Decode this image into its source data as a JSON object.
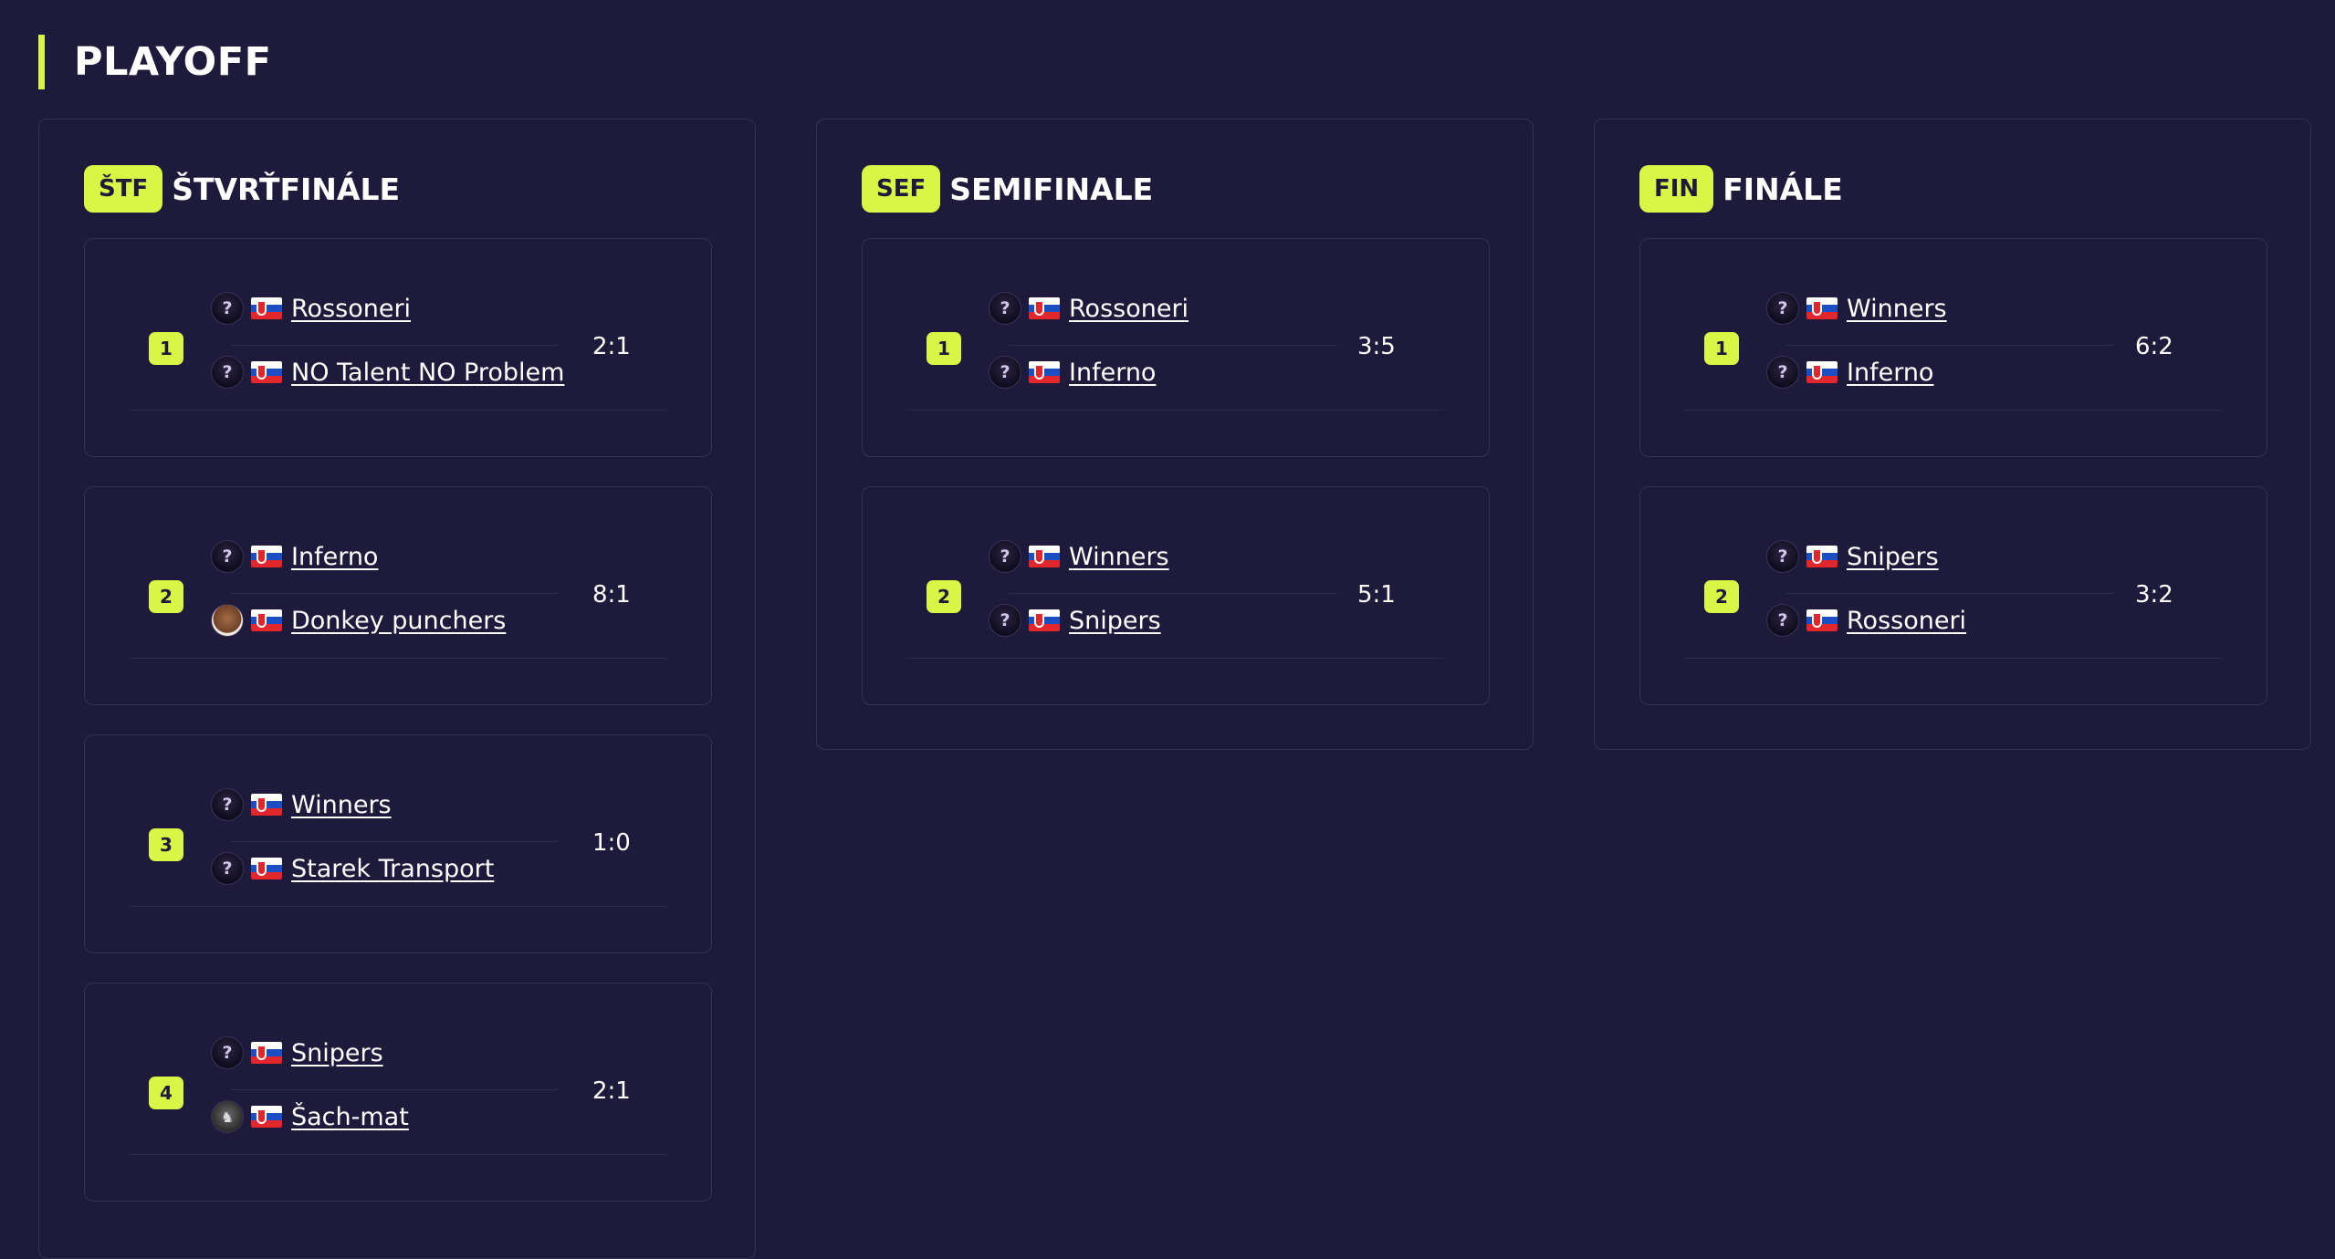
{
  "page": {
    "title": "PLAYOFF",
    "accent_color": "#d9f545",
    "background_color": "#1e1a3b"
  },
  "rounds": [
    {
      "badge": "ŠTF",
      "title": "ŠTVRŤFINÁLE",
      "matches": [
        {
          "number": "1",
          "score": "2:1",
          "team1": {
            "name": "Rossoneri",
            "avatar": "question-avatar",
            "flag": "slovakia-flag"
          },
          "team2": {
            "name": "NO Talent NO Problem",
            "avatar": "question-avatar",
            "flag": "slovakia-flag"
          }
        },
        {
          "number": "2",
          "score": "8:1",
          "team1": {
            "name": "Inferno",
            "avatar": "question-avatar",
            "flag": "slovakia-flag"
          },
          "team2": {
            "name": "Donkey punchers",
            "avatar": "team-photo-avatar",
            "flag": "slovakia-flag"
          }
        },
        {
          "number": "3",
          "score": "1:0",
          "team1": {
            "name": "Winners",
            "avatar": "question-avatar",
            "flag": "slovakia-flag"
          },
          "team2": {
            "name": "Starek Transport",
            "avatar": "question-avatar",
            "flag": "slovakia-flag"
          }
        },
        {
          "number": "4",
          "score": "2:1",
          "team1": {
            "name": "Snipers",
            "avatar": "question-avatar",
            "flag": "slovakia-flag"
          },
          "team2": {
            "name": "Šach-mat",
            "avatar": "knight-avatar",
            "flag": "slovakia-flag"
          }
        }
      ]
    },
    {
      "badge": "SEF",
      "title": "SEMIFINALE",
      "matches": [
        {
          "number": "1",
          "score": "3:5",
          "team1": {
            "name": "Rossoneri",
            "avatar": "question-avatar",
            "flag": "slovakia-flag"
          },
          "team2": {
            "name": "Inferno",
            "avatar": "question-avatar",
            "flag": "slovakia-flag"
          }
        },
        {
          "number": "2",
          "score": "5:1",
          "team1": {
            "name": "Winners",
            "avatar": "question-avatar",
            "flag": "slovakia-flag"
          },
          "team2": {
            "name": "Snipers",
            "avatar": "question-avatar",
            "flag": "slovakia-flag"
          }
        }
      ]
    },
    {
      "badge": "FIN",
      "title": "FINÁLE",
      "matches": [
        {
          "number": "1",
          "score": "6:2",
          "team1": {
            "name": "Winners",
            "avatar": "question-avatar",
            "flag": "slovakia-flag"
          },
          "team2": {
            "name": "Inferno",
            "avatar": "question-avatar",
            "flag": "slovakia-flag"
          }
        },
        {
          "number": "2",
          "score": "3:2",
          "team1": {
            "name": "Snipers",
            "avatar": "question-avatar",
            "flag": "slovakia-flag"
          },
          "team2": {
            "name": "Rossoneri",
            "avatar": "question-avatar",
            "flag": "slovakia-flag"
          }
        }
      ]
    }
  ]
}
